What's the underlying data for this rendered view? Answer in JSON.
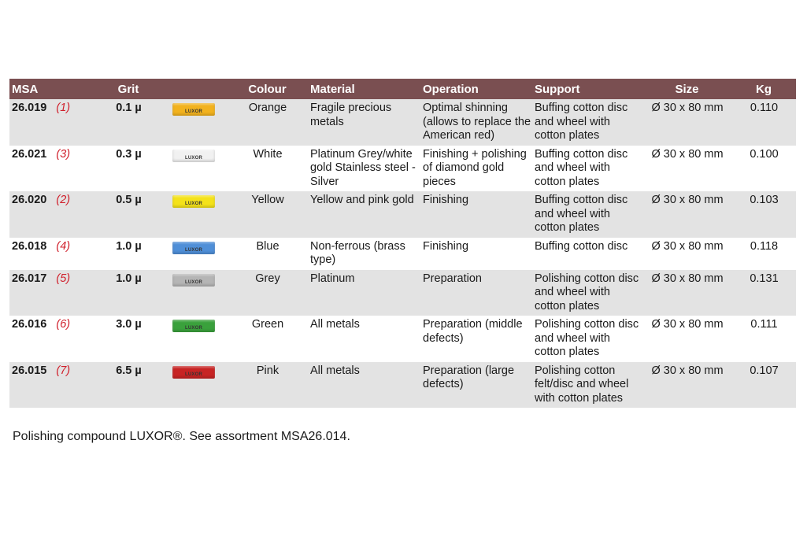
{
  "headers": {
    "msa": "MSA",
    "grit": "Grit",
    "colour": "Colour",
    "material": "Material",
    "operation": "Operation",
    "support": "Support",
    "size": "Size",
    "kg": "Kg"
  },
  "rows": [
    {
      "msa": "26.019",
      "ref": "(1)",
      "grit": "0.1 µ",
      "swatch": "#f2b21e",
      "swatch_label": "LUXOR",
      "colour": "Orange",
      "material": "Fragile precious metals",
      "operation": "Optimal shinning (allows to replace the American red)",
      "support": "Buffing cotton disc and wheel with cotton plates",
      "size": "Ø 30 x 80 mm",
      "kg": "0.110"
    },
    {
      "msa": "26.021",
      "ref": "(3)",
      "grit": "0.3 µ",
      "swatch": "#f1f1f1",
      "swatch_label": "LUXOR",
      "colour": "White",
      "material": "Platinum Grey/white gold Stainless steel - Silver",
      "operation": "Finishing + polishing of diamond gold pieces",
      "support": "Buffing cotton disc and wheel with cotton plates",
      "size": "Ø 30 x 80 mm",
      "kg": "0.100"
    },
    {
      "msa": "26.020",
      "ref": "(2)",
      "grit": "0.5 µ",
      "swatch": "#f4e21a",
      "swatch_label": "LUXOR",
      "colour": "Yellow",
      "material": "Yellow and pink gold",
      "operation": "Finishing",
      "support": "Buffing cotton disc and wheel with cotton plates",
      "size": "Ø 30 x 80 mm",
      "kg": "0.103"
    },
    {
      "msa": "26.018",
      "ref": "(4)",
      "grit": "1.0 µ",
      "swatch": "#4f8fd8",
      "swatch_label": "LUXOR",
      "colour": "Blue",
      "material": "Non-ferrous (brass type)",
      "operation": "Finishing",
      "support": "Buffing cotton disc",
      "size": "Ø 30 x 80 mm",
      "kg": "0.118"
    },
    {
      "msa": "26.017",
      "ref": "(5)",
      "grit": "1.0 µ",
      "swatch": "#b5b5b5",
      "swatch_label": "LUXOR",
      "colour": "Grey",
      "material": "Platinum",
      "operation": "Preparation",
      "support": "Polishing cotton disc and wheel with cotton plates",
      "size": "Ø 30 x 80 mm",
      "kg": "0.131"
    },
    {
      "msa": "26.016",
      "ref": "(6)",
      "grit": "3.0 µ",
      "swatch": "#3aa13c",
      "swatch_label": "LUXOR",
      "colour": "Green",
      "material": "All metals",
      "operation": "Preparation (middle defects)",
      "support": "Polishing cotton disc and wheel with cotton plates",
      "size": "Ø 30 x 80 mm",
      "kg": "0.111"
    },
    {
      "msa": "26.015",
      "ref": "(7)",
      "grit": "6.5 µ",
      "swatch": "#c72424",
      "swatch_label": "LUXOR",
      "colour": "Pink",
      "material": "All metals",
      "operation": "Preparation (large defects)",
      "support": "Polishing cotton felt/disc and wheel with cotton plates",
      "size": "Ø 30 x 80 mm",
      "kg": "0.107"
    }
  ],
  "note": "Polishing compound LUXOR®. See assortment MSA26.014."
}
